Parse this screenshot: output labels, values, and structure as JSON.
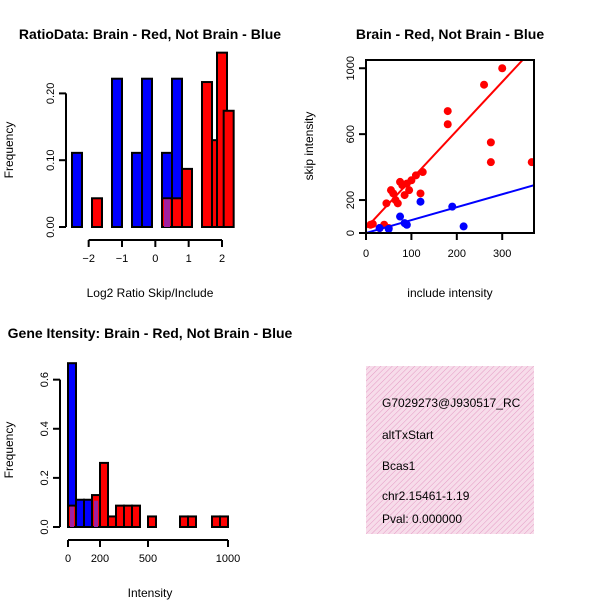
{
  "colors": {
    "brain": "#ff0000",
    "not_brain": "#0000ff",
    "overlap": "#a020a0",
    "info_bg": "#f7dcea",
    "pval": "#b00000"
  },
  "chart_data": [
    {
      "id": "ratio_hist",
      "type": "bar",
      "title": "RatioData: Brain - Red, Not Brain - Blue",
      "xlabel": "Log2 Ratio Skip/Include",
      "ylabel": "Frequency",
      "xlim": [
        -2.5,
        2.3
      ],
      "ylim": [
        0,
        0.25
      ],
      "xticks": [
        -2,
        -1,
        0,
        1,
        2
      ],
      "yticks": [
        0.0,
        0.1,
        0.2
      ],
      "ytick_labels": [
        "0.00",
        "0.10",
        "0.20"
      ],
      "bin_width": 0.3,
      "series": [
        {
          "name": "Not Brain",
          "color": "#0000ff",
          "bins": [
            [
              -2.5,
              0.111
            ],
            [
              -1.3,
              0.222
            ],
            [
              -0.7,
              0.111
            ],
            [
              -0.4,
              0.222
            ],
            [
              0.2,
              0.111
            ],
            [
              0.5,
              0.222
            ]
          ]
        },
        {
          "name": "Brain",
          "color": "#ff0000",
          "bins": [
            [
              -1.9,
              0.043
            ],
            [
              0.2,
              0.043
            ],
            [
              0.5,
              0.043
            ],
            [
              0.8,
              0.087
            ],
            [
              1.4,
              0.217
            ],
            [
              1.7,
              0.13
            ],
            [
              1.85,
              0.261
            ],
            [
              2.05,
              0.174
            ]
          ]
        }
      ],
      "overlap": [
        [
          0.2,
          0.043
        ]
      ]
    },
    {
      "id": "skip_scatter",
      "type": "scatter",
      "title": "Brain - Red, Not Brain - Blue",
      "xlabel": "include intensity",
      "ylabel": "skip intensity",
      "xlim": [
        0,
        370
      ],
      "ylim": [
        0,
        1050
      ],
      "xticks": [
        0,
        100,
        200,
        300
      ],
      "yticks": [
        0,
        200,
        600,
        1000
      ],
      "series": [
        {
          "name": "Brain",
          "color": "#ff0000",
          "points": [
            [
              10,
              50
            ],
            [
              15,
              55
            ],
            [
              30,
              30
            ],
            [
              45,
              180
            ],
            [
              55,
              260
            ],
            [
              60,
              240
            ],
            [
              65,
              200
            ],
            [
              70,
              180
            ],
            [
              75,
              310
            ],
            [
              80,
              290
            ],
            [
              85,
              230
            ],
            [
              90,
              300
            ],
            [
              95,
              260
            ],
            [
              100,
              320
            ],
            [
              110,
              350
            ],
            [
              120,
              240
            ],
            [
              125,
              370
            ],
            [
              180,
              740
            ],
            [
              180,
              660
            ],
            [
              260,
              900
            ],
            [
              275,
              550
            ],
            [
              275,
              430
            ],
            [
              300,
              1000
            ],
            [
              365,
              430
            ],
            [
              40,
              50
            ],
            [
              50,
              30
            ]
          ],
          "fit": [
            [
              0,
              30
            ],
            [
              345,
              1050
            ]
          ]
        },
        {
          "name": "Not Brain",
          "color": "#0000ff",
          "points": [
            [
              30,
              30
            ],
            [
              50,
              25
            ],
            [
              75,
              100
            ],
            [
              85,
              60
            ],
            [
              90,
              50
            ],
            [
              120,
              190
            ],
            [
              190,
              160
            ],
            [
              215,
              40
            ]
          ],
          "fit": [
            [
              0,
              0
            ],
            [
              370,
              290
            ]
          ]
        }
      ]
    },
    {
      "id": "intensity_hist",
      "type": "bar",
      "title": "Gene Itensity: Brain - Red, Not Brain - Blue",
      "xlabel": "Intensity",
      "ylabel": "Frequency",
      "xlim": [
        0,
        1050
      ],
      "ylim": [
        0,
        0.68
      ],
      "xticks": [
        0,
        200,
        500,
        1000
      ],
      "yticks": [
        0.0,
        0.2,
        0.4,
        0.6
      ],
      "ytick_labels": [
        "0.0",
        "0.2",
        "0.4",
        "0.6"
      ],
      "bin_width": 50,
      "series": [
        {
          "name": "Not Brain",
          "color": "#0000ff",
          "bins": [
            [
              0,
              0.667
            ],
            [
              50,
              0.111
            ],
            [
              100,
              0.111
            ],
            [
              150,
              0.111
            ]
          ]
        },
        {
          "name": "Brain",
          "color": "#ff0000",
          "bins": [
            [
              0,
              0.087
            ],
            [
              150,
              0.13
            ],
            [
              200,
              0.261
            ],
            [
              250,
              0.043
            ],
            [
              300,
              0.087
            ],
            [
              350,
              0.087
            ],
            [
              400,
              0.087
            ],
            [
              500,
              0.043
            ],
            [
              700,
              0.043
            ],
            [
              750,
              0.043
            ],
            [
              900,
              0.043
            ],
            [
              950,
              0.043
            ]
          ]
        }
      ],
      "overlap": [
        [
          0,
          0.087
        ],
        [
          150,
          0.111
        ]
      ]
    }
  ],
  "info": {
    "id": "G7029273@J930517_RC",
    "event": "altTxStart",
    "gene": "Bcas1",
    "location": "chr2.15461-1.19",
    "pval": "Pval: 0.000000"
  }
}
